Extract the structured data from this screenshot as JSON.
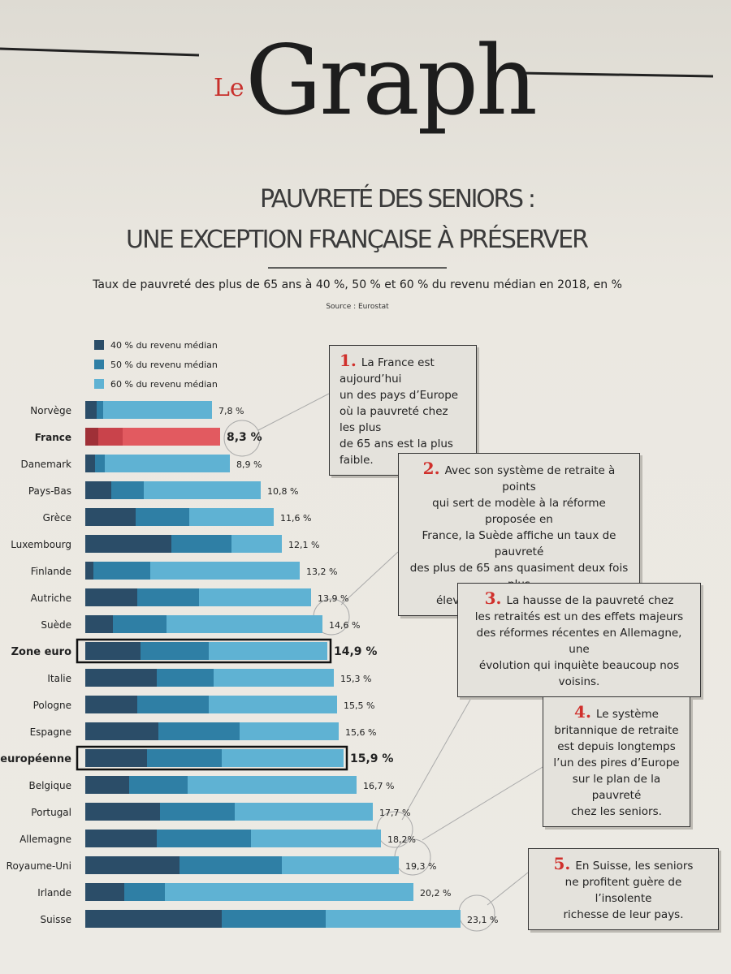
{
  "header": {
    "kicker": "Le",
    "title": "Graph"
  },
  "chart_data": {
    "type": "bar",
    "title": [
      "PAUVRETÉ DES SENIORS :",
      "UNE EXCEPTION FRANÇAISE À PRÉSERVER"
    ],
    "subtitle": "Taux de pauvreté des plus de 65 ans à 40 %, 50 % et 60 % du revenu médian en 2018, en %",
    "source": "Source : Eurostat",
    "orientation": "horizontal",
    "overlap": true,
    "categories": [
      "Norvège",
      "France",
      "Danemark",
      "Pays-Bas",
      "Grèce",
      "Luxembourg",
      "Finlande",
      "Autriche",
      "Suède",
      "Zone euro",
      "Italie",
      "Pologne",
      "Espagne",
      "Union européenne",
      "Belgique",
      "Portugal",
      "Allemagne",
      "Royaume-Uni",
      "Irlande",
      "Suisse"
    ],
    "series": [
      {
        "name": "60 % du revenu médian",
        "color": "#5fb2d3",
        "values": [
          7.8,
          8.3,
          8.9,
          10.8,
          11.6,
          12.1,
          13.2,
          13.9,
          14.6,
          14.9,
          15.3,
          15.5,
          15.6,
          15.9,
          16.7,
          17.7,
          18.2,
          19.3,
          20.2,
          23.1
        ],
        "value_labels": [
          "7,8 %",
          "8,3 %",
          "8,9 %",
          "10,8 %",
          "11,6 %",
          "12,1 %",
          "13,2 %",
          "13,9 %",
          "14,6 %",
          "14,9 %",
          "15,3 %",
          "15,5 %",
          "15,6 %",
          "15,9 %",
          "16,7 %",
          "17,7 %",
          "18,2%",
          "19,3 %",
          "20,2 %",
          "23,1 %"
        ]
      },
      {
        "name": "50 % du revenu médian",
        "color": "#2f7fa5",
        "values": [
          1.1,
          2.3,
          1.2,
          3.6,
          6.4,
          9.0,
          4.0,
          7.0,
          5.0,
          7.6,
          7.9,
          7.6,
          9.5,
          8.4,
          6.3,
          9.2,
          10.2,
          12.1,
          4.9,
          14.8
        ]
      },
      {
        "name": "40 % du revenu médian",
        "color": "#2b4d68",
        "values": [
          0.7,
          0.8,
          0.6,
          1.6,
          3.1,
          5.3,
          0.5,
          3.2,
          1.7,
          3.4,
          4.4,
          3.2,
          4.5,
          3.8,
          2.7,
          4.6,
          4.4,
          5.8,
          2.4,
          8.4
        ]
      }
    ],
    "legend_order": [
      2,
      1,
      0
    ],
    "highlight": {
      "category": "France",
      "colors": [
        "#e25a60",
        "#c9434b",
        "#9f3037"
      ]
    },
    "boxed": [
      "Zone euro",
      "Union européenne"
    ],
    "annotations": [
      {
        "number": "1.",
        "lines": [
          "La France est aujourd’hui",
          "un des pays d’Europe",
          "où la pauvreté chez les plus",
          "de 65 ans est la plus faible."
        ]
      },
      {
        "number": "2.",
        "lines": [
          "Avec son système de retraite à points",
          "qui sert de modèle à la réforme proposée en",
          "France, la Suède affiche un taux de pauvreté",
          "des plus de 65 ans quasiment deux fois plus",
          "élevé que celui de notre pays."
        ]
      },
      {
        "number": "3.",
        "lines": [
          "La hausse de la pauvreté chez",
          "les retraités est un des effets majeurs",
          "des réformes récentes en Allemagne, une",
          "évolution qui inquiète beaucoup nos voisins."
        ]
      },
      {
        "number": "4.",
        "lines": [
          "Le système",
          "britannique de retraite",
          "est depuis longtemps",
          "l’un des pires d’Europe",
          "sur le plan de la pauvreté",
          "chez les seniors."
        ]
      },
      {
        "number": "5.",
        "lines": [
          "En Suisse, les seniors",
          "ne profitent guère de l’insolente",
          "richesse de leur pays."
        ]
      }
    ]
  }
}
